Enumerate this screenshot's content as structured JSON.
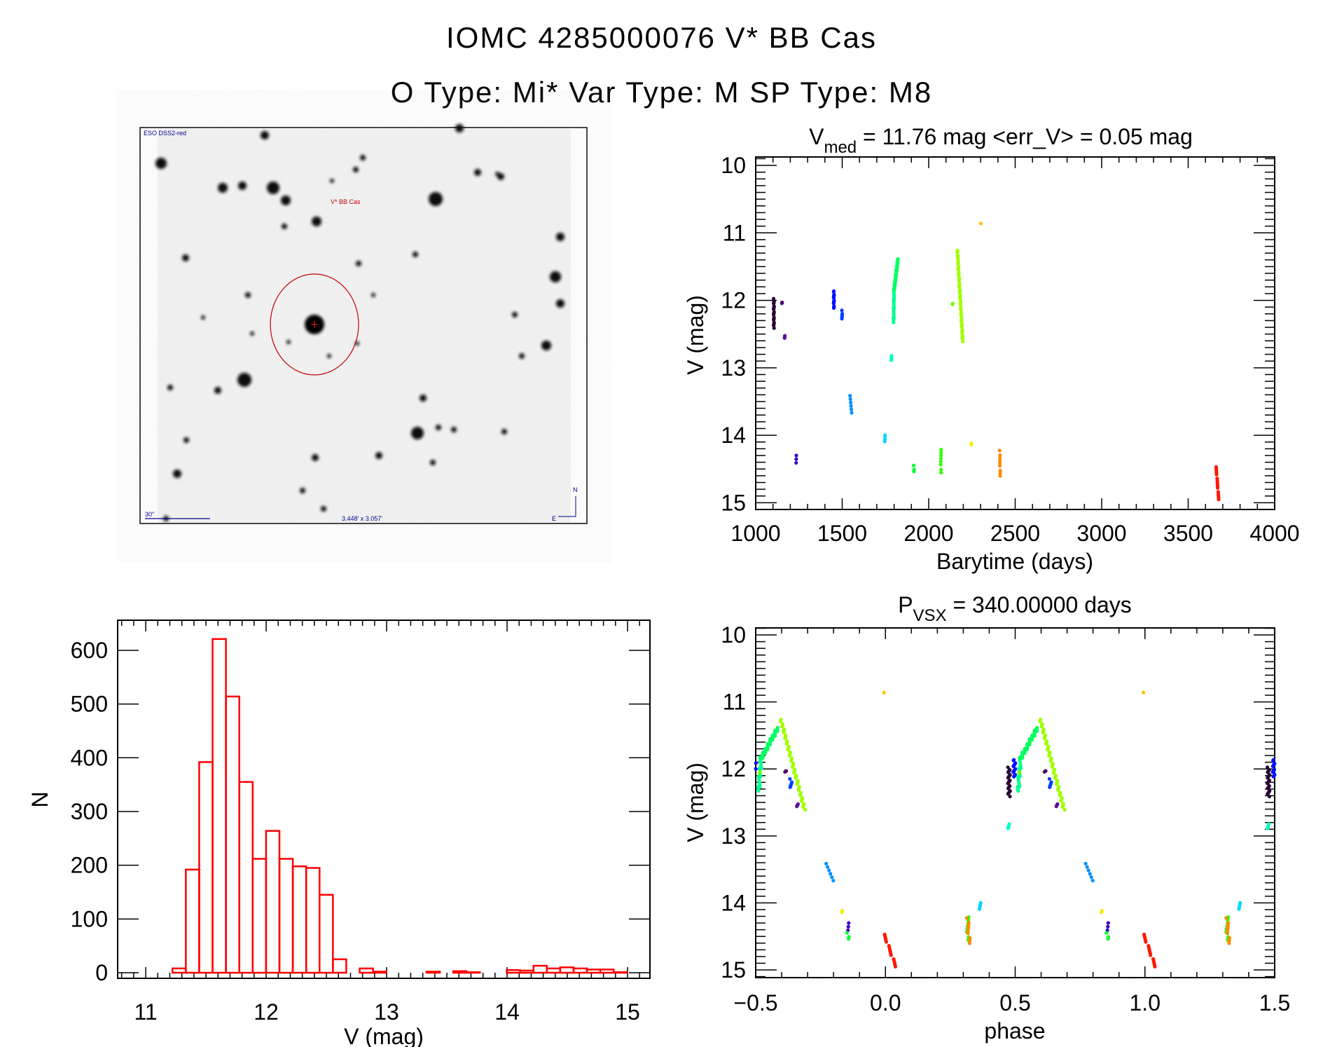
{
  "header": {
    "title_line1": "IOMC 4285000076    V* BB Cas",
    "title_line2": "O Type: Mi*   Var Type: M   SP Type: M8"
  },
  "sky_image": {
    "survey_label": "ESO DSS2-red",
    "target_label": "V* BB Cas",
    "scale_bar_label": "30\"",
    "field_size_label": "3.448' x 3.057'",
    "north_label": "N",
    "east_label": "E",
    "circle_color": "#c00000",
    "label_color": "#00008b"
  },
  "chart_data": [
    {
      "type": "scatter",
      "name": "light-curve",
      "title_main": "V",
      "title_sub": "med",
      "title_rest": " = 11.76 mag <err_V> = 0.05 mag",
      "xlabel": "Barytime (days)",
      "ylabel": "V (mag)",
      "xlim": [
        1000,
        4000
      ],
      "ylim": [
        15.1,
        9.875
      ],
      "xticks": [
        "1000",
        "1500",
        "2000",
        "2500",
        "3000",
        "3500",
        "4000"
      ],
      "yticks": [
        "10",
        "11",
        "12",
        "13",
        "14",
        "15"
      ],
      "clusters": [
        {
          "t": [
            1105,
            1105
          ],
          "mag": [
            11.99,
            12.4
          ],
          "n": 30,
          "color": "#2a0836"
        },
        {
          "t": [
            1152,
            1152
          ],
          "mag": [
            12.02,
            12.05
          ],
          "n": 4,
          "color": "#4a0a6a"
        },
        {
          "t": [
            1168,
            1168
          ],
          "mag": [
            12.52,
            12.57
          ],
          "n": 4,
          "color": "#5a109a"
        },
        {
          "t": [
            1235,
            1235
          ],
          "mag": [
            14.3,
            14.42
          ],
          "n": 3,
          "color": "#3a00d0"
        },
        {
          "t": [
            1452,
            1452
          ],
          "mag": [
            11.87,
            12.12
          ],
          "n": 18,
          "color": "#0010ff"
        },
        {
          "t": [
            1499,
            1499
          ],
          "mag": [
            12.16,
            12.28
          ],
          "n": 6,
          "color": "#0040ff"
        },
        {
          "t": [
            1544,
            1556
          ],
          "mag": [
            13.4,
            13.68
          ],
          "n": 6,
          "color": "#0090ff"
        },
        {
          "t": [
            1747,
            1747
          ],
          "mag": [
            13.99,
            14.1
          ],
          "n": 4,
          "color": "#00d8ff"
        },
        {
          "t": [
            1785,
            1785
          ],
          "mag": [
            12.82,
            12.9
          ],
          "n": 4,
          "color": "#00ffc8"
        },
        {
          "t": [
            1797,
            1800
          ],
          "mag": [
            12.33,
            11.85
          ],
          "n": 20,
          "color": "#00ff90"
        },
        {
          "t": [
            1800,
            1822
          ],
          "mag": [
            11.85,
            11.39
          ],
          "n": 40,
          "color": "#00ff60"
        },
        {
          "t": [
            1914,
            1914
          ],
          "mag": [
            14.46,
            14.53
          ],
          "n": 3,
          "color": "#00ff30"
        },
        {
          "t": [
            2071,
            2071
          ],
          "mag": [
            14.2,
            14.55
          ],
          "n": 8,
          "color": "#30ff00"
        },
        {
          "t": [
            2138,
            2138
          ],
          "mag": [
            12.04,
            12.06
          ],
          "n": 2,
          "color": "#70ff00"
        },
        {
          "t": [
            2166,
            2197
          ],
          "mag": [
            11.26,
            12.6
          ],
          "n": 90,
          "color": "#a0ff00"
        },
        {
          "t": [
            2247,
            2247
          ],
          "mag": [
            14.12,
            14.15
          ],
          "n": 2,
          "color": "#f0f000"
        },
        {
          "t": [
            2302,
            2302
          ],
          "mag": [
            10.87,
            10.87
          ],
          "n": 1,
          "color": "#ffc000"
        },
        {
          "t": [
            2411,
            2413
          ],
          "mag": [
            14.24,
            14.6
          ],
          "n": 9,
          "color": "#ff8a00"
        },
        {
          "t": [
            3661,
            3677
          ],
          "mag": [
            14.46,
            14.96
          ],
          "n": 16,
          "color": "#ff1800"
        }
      ]
    },
    {
      "type": "scatter",
      "name": "phased-light-curve",
      "title_main": "P",
      "title_sub": "VSX",
      "title_rest": " = 340.00000 days",
      "period_days": 340.0,
      "epoch_days": 3663,
      "xlabel": "phase",
      "ylabel": "V (mag)",
      "xlim": [
        -0.5,
        1.5
      ],
      "ylim": [
        15.115,
        9.895
      ],
      "xticks": [
        "−0.5",
        "0.0",
        "0.5",
        "1.0",
        "1.5"
      ],
      "yticks": [
        "10",
        "11",
        "12",
        "13",
        "14",
        "15"
      ]
    },
    {
      "type": "bar",
      "name": "magnitude-histogram",
      "xlabel": "V (mag)",
      "ylabel": "N",
      "xlim": [
        10.767,
        15.186
      ],
      "ylim": [
        -10.4,
        656
      ],
      "xticks": [
        "11",
        "12",
        "13",
        "14",
        "15"
      ],
      "yticks": [
        "0",
        "100",
        "200",
        "300",
        "400",
        "500",
        "600"
      ],
      "bin_start": 10.889,
      "bin_width": 0.111,
      "values": [
        0,
        0,
        0,
        8,
        192,
        392,
        621,
        514,
        355,
        212,
        264,
        212,
        198,
        195,
        145,
        25,
        0,
        8,
        2,
        0,
        0,
        0,
        2,
        0,
        3,
        1,
        0,
        0,
        5,
        4,
        13,
        8,
        10,
        8,
        6,
        6,
        1
      ],
      "color": "#ff0000"
    }
  ]
}
